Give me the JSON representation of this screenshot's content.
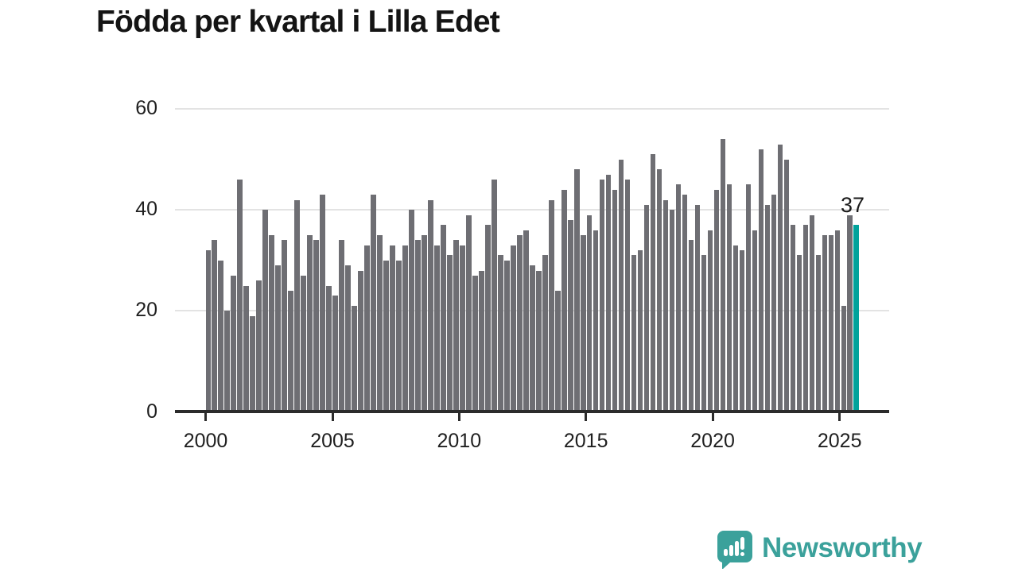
{
  "title": "Födda per kvartal i Lilla Edet",
  "colors": {
    "bar": "#6e6e73",
    "highlight": "#00a29b",
    "brand_teal": "#3ba19b",
    "gridline": "#e3e3e3",
    "axis": "#2b2b2b",
    "text": "#1a1a1a"
  },
  "chart_data": {
    "type": "bar",
    "title": "Födda per kvartal i Lilla Edet",
    "x_unit": "quarter",
    "x_start": "2000 Q1",
    "x_end": "2025 Q3",
    "x_tick_labels": [
      "2000",
      "2005",
      "2010",
      "2015",
      "2020",
      "2025"
    ],
    "y_tick_labels": [
      "0",
      "20",
      "40",
      "60"
    ],
    "y_ticks": [
      0,
      20,
      40,
      60
    ],
    "ylim": [
      0,
      63
    ],
    "grid": "horizontal",
    "legend": "none",
    "series": [
      {
        "name": "Födda",
        "values": [
          32,
          34,
          30,
          20,
          27,
          46,
          25,
          19,
          26,
          40,
          35,
          29,
          34,
          24,
          42,
          27,
          35,
          34,
          43,
          25,
          23,
          34,
          29,
          21,
          28,
          33,
          43,
          35,
          30,
          33,
          30,
          33,
          40,
          34,
          35,
          42,
          33,
          37,
          31,
          34,
          33,
          39,
          27,
          28,
          37,
          46,
          31,
          30,
          33,
          35,
          36,
          29,
          28,
          31,
          42,
          24,
          44,
          38,
          48,
          35,
          39,
          36,
          46,
          47,
          44,
          50,
          46,
          31,
          32,
          41,
          51,
          48,
          42,
          40,
          45,
          43,
          34,
          41,
          31,
          36,
          44,
          54,
          45,
          33,
          32,
          45,
          36,
          52,
          41,
          43,
          53,
          50,
          37,
          31,
          37,
          39,
          31,
          35,
          35,
          36,
          21,
          39,
          37
        ]
      }
    ],
    "highlight": {
      "index": 102,
      "value": 37,
      "label": "37"
    }
  },
  "footer": {
    "brand": "Newsworthy",
    "logo_icon": "newsworthy-speech-bubble-bar-chart-icon"
  }
}
